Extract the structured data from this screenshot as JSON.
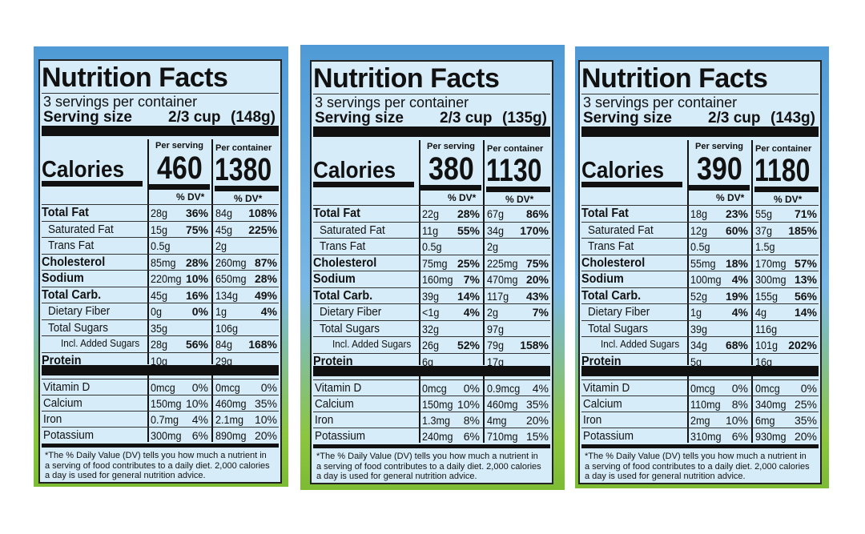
{
  "labels": [
    {
      "title": "Nutrition Facts",
      "servings": "3 servings per container",
      "serving_size_label": "Serving size",
      "serving_size": "2/3 cup",
      "serving_weight": "(148g)",
      "per_serving": "Per serving",
      "per_container": "Per container",
      "calories_label": "Calories",
      "calories_serving": 460,
      "calories_container": 1380,
      "dv_header": "% DV*",
      "nutrients": [
        {
          "name": "Total Fat",
          "serving": "28g",
          "serving_dv": "36%",
          "container": "84g",
          "container_dv": "108%"
        },
        {
          "name": "Saturated Fat",
          "serving": "15g",
          "serving_dv": "75%",
          "container": "45g",
          "container_dv": "225%"
        },
        {
          "name": "Trans Fat",
          "serving": "0.5g",
          "container": "2g"
        },
        {
          "name": "Cholesterol",
          "serving": "85mg",
          "serving_dv": "28%",
          "container": "260mg",
          "container_dv": "87%"
        },
        {
          "name": "Sodium",
          "serving": "220mg",
          "serving_dv": "10%",
          "container": "650mg",
          "container_dv": "28%"
        },
        {
          "name": "Total Carb.",
          "serving": "45g",
          "serving_dv": "16%",
          "container": "134g",
          "container_dv": "49%"
        },
        {
          "name": "Dietary Fiber",
          "serving": "0g",
          "serving_dv": "0%",
          "container": "1g",
          "container_dv": "4%"
        },
        {
          "name": "Total Sugars",
          "serving": "35g",
          "container": "106g"
        },
        {
          "name": "Incl. Added Sugars",
          "serving": "28g",
          "serving_dv": "56%",
          "container": "84g",
          "container_dv": "168%"
        },
        {
          "name": "Protein",
          "serving": "10g",
          "container": "29g"
        }
      ],
      "vitamins": [
        {
          "name": "Vitamin D",
          "serving": "0mcg",
          "serving_dv": "0%",
          "container": "0mcg",
          "container_dv": "0%"
        },
        {
          "name": "Calcium",
          "serving": "150mg",
          "serving_dv": "10%",
          "container": "460mg",
          "container_dv": "35%"
        },
        {
          "name": "Iron",
          "serving": "0.7mg",
          "serving_dv": "4%",
          "container": "2.1mg",
          "container_dv": "10%"
        },
        {
          "name": "Potassium",
          "serving": "300mg",
          "serving_dv": "6%",
          "container": "890mg",
          "container_dv": "20%"
        }
      ],
      "footnote": "*The % Daily Value (DV) tells you how much a nutrient in a serving of food contributes to a daily diet. 2,000 calories a day is used for general nutrition advice."
    },
    {
      "title": "Nutrition Facts",
      "servings": "3 servings per container",
      "serving_size_label": "Serving size",
      "serving_size": "2/3 cup",
      "serving_weight": "(135g)",
      "per_serving": "Per serving",
      "per_container": "Per container",
      "calories_label": "Calories",
      "calories_serving": 380,
      "calories_container": 1130,
      "dv_header": "% DV*",
      "nutrients": [
        {
          "name": "Total Fat",
          "serving": "22g",
          "serving_dv": "28%",
          "container": "67g",
          "container_dv": "86%"
        },
        {
          "name": "Saturated Fat",
          "serving": "11g",
          "serving_dv": "55%",
          "container": "34g",
          "container_dv": "170%"
        },
        {
          "name": "Trans Fat",
          "serving": "0.5g",
          "container": "2g"
        },
        {
          "name": "Cholesterol",
          "serving": "75mg",
          "serving_dv": "25%",
          "container": "225mg",
          "container_dv": "75%"
        },
        {
          "name": "Sodium",
          "serving": "160mg",
          "serving_dv": "7%",
          "container": "470mg",
          "container_dv": "20%"
        },
        {
          "name": "Total Carb.",
          "serving": "39g",
          "serving_dv": "14%",
          "container": "117g",
          "container_dv": "43%"
        },
        {
          "name": "Dietary Fiber",
          "serving": "<1g",
          "serving_dv": "4%",
          "container": "2g",
          "container_dv": "7%"
        },
        {
          "name": "Total Sugars",
          "serving": "32g",
          "container": "97g"
        },
        {
          "name": "Incl. Added Sugars",
          "serving": "26g",
          "serving_dv": "52%",
          "container": "79g",
          "container_dv": "158%"
        },
        {
          "name": "Protein",
          "serving": "6g",
          "container": "17g"
        }
      ],
      "vitamins": [
        {
          "name": "Vitamin D",
          "serving": "0mcg",
          "serving_dv": "0%",
          "container": "0.9mcg",
          "container_dv": "4%"
        },
        {
          "name": "Calcium",
          "serving": "150mg",
          "serving_dv": "10%",
          "container": "460mg",
          "container_dv": "35%"
        },
        {
          "name": "Iron",
          "serving": "1.3mg",
          "serving_dv": "8%",
          "container": "4mg",
          "container_dv": "20%"
        },
        {
          "name": "Potassium",
          "serving": "240mg",
          "serving_dv": "6%",
          "container": "710mg",
          "container_dv": "15%"
        }
      ],
      "footnote": "*The % Daily Value (DV) tells you how much a nutrient in a serving of food contributes to a daily diet. 2,000 calories a day is used for general nutrition advice."
    },
    {
      "title": "Nutrition Facts",
      "servings": "3 servings per container",
      "serving_size_label": "Serving size",
      "serving_size": "2/3 cup",
      "serving_weight": "(143g)",
      "per_serving": "Per serving",
      "per_container": "Per container",
      "calories_label": "Calories",
      "calories_serving": 390,
      "calories_container": 1180,
      "dv_header": "% DV*",
      "nutrients": [
        {
          "name": "Total Fat",
          "serving": "18g",
          "serving_dv": "23%",
          "container": "55g",
          "container_dv": "71%"
        },
        {
          "name": "Saturated Fat",
          "serving": "12g",
          "serving_dv": "60%",
          "container": "37g",
          "container_dv": "185%"
        },
        {
          "name": "Trans Fat",
          "serving": "0.5g",
          "container": "1.5g"
        },
        {
          "name": "Cholesterol",
          "serving": "55mg",
          "serving_dv": "18%",
          "container": "170mg",
          "container_dv": "57%"
        },
        {
          "name": "Sodium",
          "serving": "100mg",
          "serving_dv": "4%",
          "container": "300mg",
          "container_dv": "13%"
        },
        {
          "name": "Total Carb.",
          "serving": "52g",
          "serving_dv": "19%",
          "container": "155g",
          "container_dv": "56%"
        },
        {
          "name": "Dietary Fiber",
          "serving": "1g",
          "serving_dv": "4%",
          "container": "4g",
          "container_dv": "14%"
        },
        {
          "name": "Total Sugars",
          "serving": "39g",
          "container": "116g"
        },
        {
          "name": "Incl. Added Sugars",
          "serving": "34g",
          "serving_dv": "68%",
          "container": "101g",
          "container_dv": "202%"
        },
        {
          "name": "Protein",
          "serving": "5g",
          "container": "16g"
        }
      ],
      "vitamins": [
        {
          "name": "Vitamin D",
          "serving": "0mcg",
          "serving_dv": "0%",
          "container": "0mcg",
          "container_dv": "0%"
        },
        {
          "name": "Calcium",
          "serving": "110mg",
          "serving_dv": "8%",
          "container": "340mg",
          "container_dv": "25%"
        },
        {
          "name": "Iron",
          "serving": "2mg",
          "serving_dv": "10%",
          "container": "6mg",
          "container_dv": "35%"
        },
        {
          "name": "Potassium",
          "serving": "310mg",
          "serving_dv": "6%",
          "container": "930mg",
          "container_dv": "20%"
        }
      ],
      "footnote": "*The % Daily Value (DV) tells you how much a nutrient in a serving of food contributes to a daily diet. 2,000 calories a day is used for general nutrition advice."
    }
  ]
}
